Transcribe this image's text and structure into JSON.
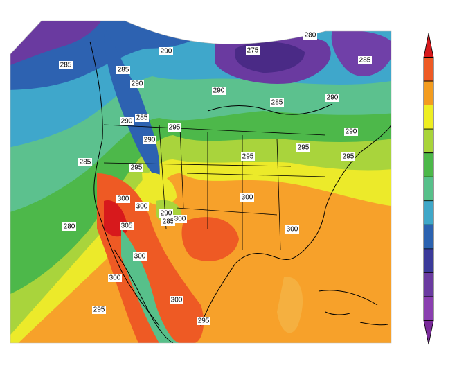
{
  "map": {
    "contour_labels": [
      285,
      285,
      290,
      290,
      275,
      280,
      285,
      290,
      285,
      290,
      290,
      285,
      295,
      290,
      290,
      295,
      295,
      295,
      285,
      295,
      300,
      300,
      290,
      285,
      300,
      300,
      300,
      280,
      305,
      300,
      300,
      300,
      295,
      295
    ],
    "colorbar": {
      "colors": [
        "#d7191c",
        "#ee5a24",
        "#f39c1f",
        "#eeee22",
        "#a8d43a",
        "#4cb849",
        "#57c08a",
        "#3fa7c8",
        "#2b62b0",
        "#3b3a9a",
        "#6a3aa0",
        "#8a3fb0",
        "#7a2a9a"
      ]
    }
  }
}
